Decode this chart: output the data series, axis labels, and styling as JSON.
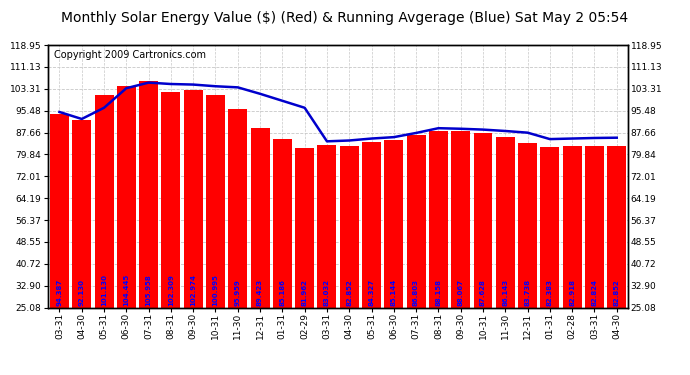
{
  "title": "Monthly Solar Energy Value ($) (Red) & Running Avgerage (Blue) Sat May 2 05:54",
  "copyright": "Copyright 2009 Cartronics.com",
  "categories": [
    "03-31",
    "04-30",
    "05-31",
    "06-30",
    "07-31",
    "08-31",
    "09-30",
    "10-31",
    "11-30",
    "12-31",
    "01-31",
    "02-29",
    "03-31",
    "04-30",
    "05-31",
    "06-30",
    "07-31",
    "08-31",
    "09-30",
    "10-31",
    "11-30",
    "12-31",
    "01-31",
    "02-28",
    "03-31",
    "04-30"
  ],
  "bar_values": [
    94.387,
    92.13,
    101.13,
    104.445,
    105.958,
    102.309,
    102.974,
    100.995,
    95.959,
    89.423,
    85.186,
    81.962,
    83.032,
    82.852,
    84.327,
    85.144,
    86.803,
    88.158,
    88.067,
    87.628,
    86.143,
    83.738,
    82.383,
    82.918,
    82.824,
    82.852
  ],
  "running_avg": [
    95.0,
    92.5,
    96.5,
    103.5,
    105.5,
    105.0,
    104.8,
    104.2,
    103.8,
    101.5,
    99.0,
    96.5,
    84.5,
    84.8,
    85.5,
    86.0,
    87.5,
    89.2,
    89.0,
    88.7,
    88.2,
    87.6,
    85.3,
    85.5,
    85.7,
    85.8
  ],
  "bar_color": "#FF0000",
  "line_color": "#0000CC",
  "bg_color": "#FFFFFF",
  "plot_bg_color": "#FFFFFF",
  "text_color_bar": "#0000FF",
  "grid_color": "#C8C8C8",
  "ymin": 25.08,
  "ymax": 118.95,
  "yticks": [
    25.08,
    32.9,
    40.72,
    48.55,
    56.37,
    64.19,
    72.01,
    79.84,
    87.66,
    95.48,
    103.31,
    111.13,
    118.95
  ],
  "title_fontsize": 10,
  "copyright_fontsize": 7
}
